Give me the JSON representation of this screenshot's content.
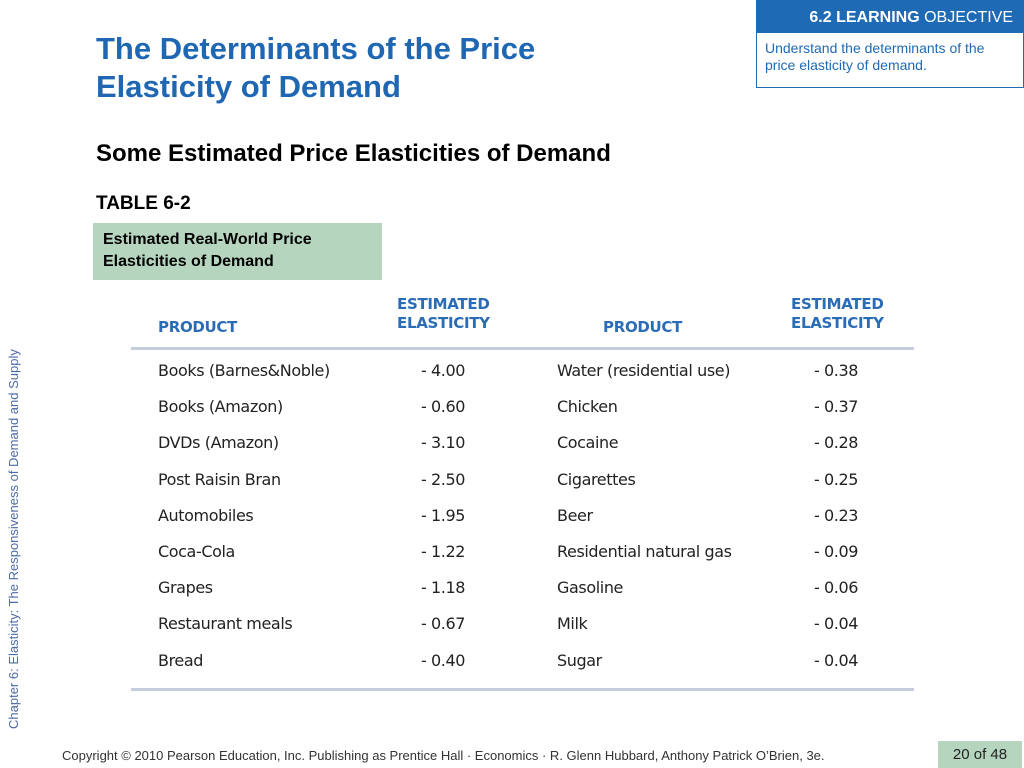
{
  "title_line1": "The Determinants of the Price",
  "title_line2": "Elasticity of Demand",
  "objective": {
    "number": "6.2",
    "bold": "LEARNING",
    "rest": "OBJECTIVE",
    "text": "Understand the determinants of the price elasticity of demand."
  },
  "subtitle": "Some Estimated Price Elasticities of Demand",
  "table_label": "TABLE 6-2",
  "caption_line1": "Estimated Real-World Price",
  "caption_line2": "Elasticities of Demand",
  "side_text": "Chapter 6:  Elasticity:  The Responsiveness of Demand and Supply",
  "headers": {
    "product": "PRODUCT",
    "elasticity_line1": "ESTIMATED",
    "elasticity_line2": "ELASTICITY"
  },
  "rows": [
    {
      "p1": "Books (Barnes&Noble)",
      "e1": "- 4.00",
      "p2": "Water (residential use)",
      "e2": "- 0.38"
    },
    {
      "p1": "Books (Amazon)",
      "e1": "- 0.60",
      "p2": "Chicken",
      "e2": "- 0.37"
    },
    {
      "p1": "DVDs (Amazon)",
      "e1": "- 3.10",
      "p2": "Cocaine",
      "e2": "- 0.28"
    },
    {
      "p1": "Post Raisin Bran",
      "e1": "- 2.50",
      "p2": "Cigarettes",
      "e2": "- 0.25"
    },
    {
      "p1": "Automobiles",
      "e1": "- 1.95",
      "p2": "Beer",
      "e2": "- 0.23"
    },
    {
      "p1": "Coca-Cola",
      "e1": "- 1.22",
      "p2": "Residential natural gas",
      "e2": "- 0.09"
    },
    {
      "p1": "Grapes",
      "e1": "- 1.18",
      "p2": "Gasoline",
      "e2": "- 0.06"
    },
    {
      "p1": "Restaurant meals",
      "e1": "- 0.67",
      "p2": "Milk",
      "e2": "- 0.04"
    },
    {
      "p1": "Bread",
      "e1": "- 0.40",
      "p2": "Sugar",
      "e2": "- 0.04"
    }
  ],
  "footer": "Copyright © 2010 Pearson Education, Inc. Publishing as Prentice Hall · Economics · R. Glenn Hubbard, Anthony Patrick O’Brien, 3e.",
  "pager": "20 of 48"
}
